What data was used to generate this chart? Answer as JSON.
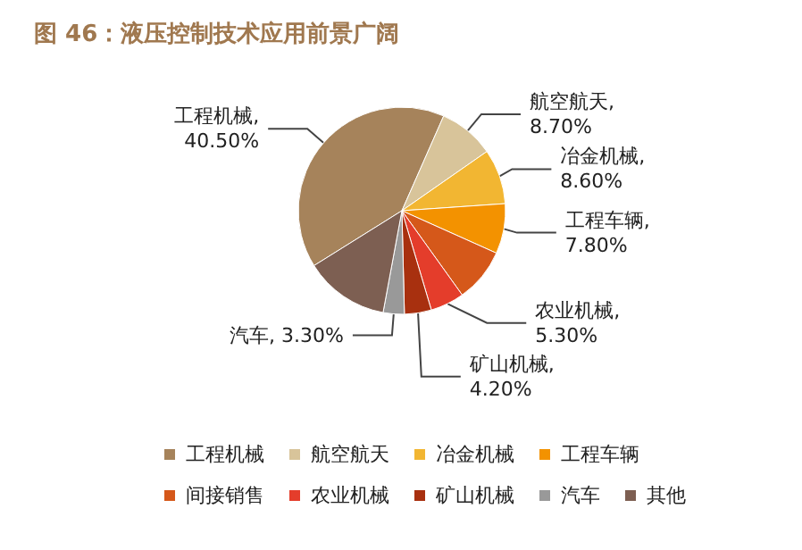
{
  "chart_data": {
    "type": "pie",
    "title": "图 46：液压控制技术应用前景广阔",
    "categories": [
      "工程机械",
      "航空航天",
      "冶金机械",
      "工程车辆",
      "间接销售",
      "农业机械",
      "矿山机械",
      "汽车",
      "其他"
    ],
    "values": [
      40.5,
      8.7,
      8.6,
      7.8,
      8.4,
      5.3,
      4.2,
      3.3,
      13.2
    ],
    "colors": [
      "#a6835b",
      "#d8c49a",
      "#f2b632",
      "#f39200",
      "#d5581a",
      "#e43d2b",
      "#a8300f",
      "#999999",
      "#7d5f52"
    ],
    "value_labels": [
      "工程机械,\n40.50%",
      "航空航天,\n8.70%",
      "冶金机械,\n8.60%",
      "工程车辆,\n7.80%",
      null,
      "农业机械,\n5.30%",
      "矿山机械,\n4.20%",
      "汽车, 3.30%",
      null
    ],
    "legend": "bottom"
  }
}
